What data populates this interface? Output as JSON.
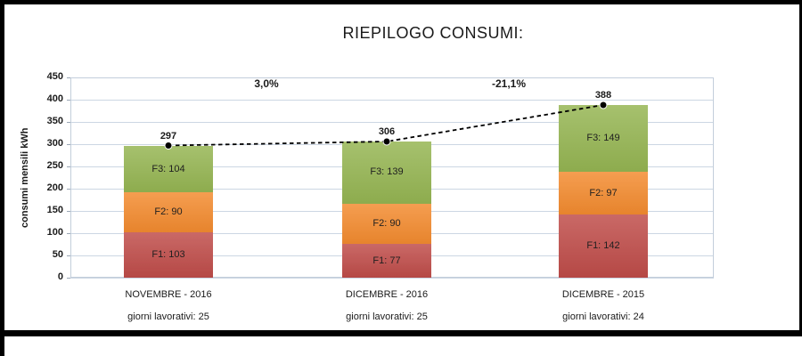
{
  "header": {
    "title": "RIEPILOGO CONSUMI:"
  },
  "chart_data": {
    "type": "bar",
    "subtype": "stacked-bars-with-total-trend-line",
    "title": "RIEPILOGO CONSUMI:",
    "xlabel": "",
    "ylabel": "consumi mensili kWh",
    "ylim": [
      0,
      450
    ],
    "yticks": [
      0,
      50,
      100,
      150,
      200,
      250,
      300,
      350,
      400,
      450
    ],
    "grid": true,
    "legend_position": "none",
    "categories": [
      "NOVEMBRE - 2016",
      "DICEMBRE - 2016",
      "DICEMBRE - 2015"
    ],
    "category_sublabels": [
      "giorni lavorativi: 25",
      "giorni lavorativi: 25",
      "giorni lavorativi: 24"
    ],
    "series": [
      {
        "name": "F1",
        "values": [
          103,
          77,
          142
        ],
        "color": "#bf4c49"
      },
      {
        "name": "F2",
        "values": [
          90,
          90,
          97
        ],
        "color": "#f38b2f"
      },
      {
        "name": "F3",
        "values": [
          104,
          139,
          149
        ],
        "color": "#95b552"
      }
    ],
    "segment_label_separator": ": ",
    "totals": [
      297,
      306,
      388
    ],
    "percent_changes": [
      "3,0%",
      "-21,1%"
    ],
    "total_line": {
      "color": "#000000",
      "style": "dashed",
      "marker": "filled-circle"
    },
    "colors": {
      "gridline": "#ccd6e3",
      "plot_border": "#c3cedb",
      "text": "#1a1a1a",
      "frame": "#000000"
    }
  }
}
